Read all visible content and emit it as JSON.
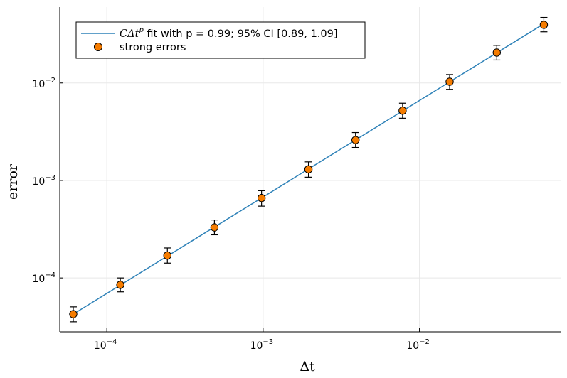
{
  "chart_data": {
    "type": "scatter",
    "x_scale": "log",
    "y_scale": "log",
    "xlim": [
      5e-05,
      0.08
    ],
    "ylim": [
      2.8e-05,
      0.06
    ],
    "grid": true,
    "legend_position": "top-left",
    "xlabel": "Δt",
    "ylabel": "error",
    "x_ticks": [
      {
        "value": 0.0001,
        "base": "10",
        "exp": "−4"
      },
      {
        "value": 0.001,
        "base": "10",
        "exp": "−3"
      },
      {
        "value": 0.01,
        "base": "10",
        "exp": "−2"
      }
    ],
    "y_ticks": [
      {
        "value": 0.0001,
        "base": "10",
        "exp": "−4"
      },
      {
        "value": 0.001,
        "base": "10",
        "exp": "−3"
      },
      {
        "value": 0.01,
        "base": "10",
        "exp": "−2"
      }
    ],
    "fit_line": {
      "legend_math": "CΔt",
      "legend_sup": "p",
      "legend_text": " fit with p = 0.99; 95% CI [0.89, 1.09]",
      "color": "#2f82b8",
      "x": [
        6.1e-05,
        0.0625
      ],
      "y": [
        4.25e-05,
        0.0405
      ]
    },
    "series": [
      {
        "name": "strong errors",
        "color": "#f57c00",
        "x": [
          6.1e-05,
          0.000122,
          0.000244,
          0.000488,
          0.000977,
          0.00195,
          0.0039,
          0.0078,
          0.0156,
          0.03125,
          0.0625
        ],
        "y": [
          4.25e-05,
          8.5e-05,
          0.00017,
          0.00033,
          0.00066,
          0.0013,
          0.0026,
          0.0052,
          0.0103,
          0.0205,
          0.0395
        ],
        "err_low": [
          3.55e-05,
          7.2e-05,
          0.000142,
          0.000277,
          0.000545,
          0.00108,
          0.00218,
          0.00435,
          0.0086,
          0.0172,
          0.0335
        ],
        "err_high": [
          5.05e-05,
          0.0001,
          0.000203,
          0.000393,
          0.000785,
          0.00155,
          0.0031,
          0.0062,
          0.0122,
          0.0243,
          0.047
        ]
      }
    ]
  }
}
